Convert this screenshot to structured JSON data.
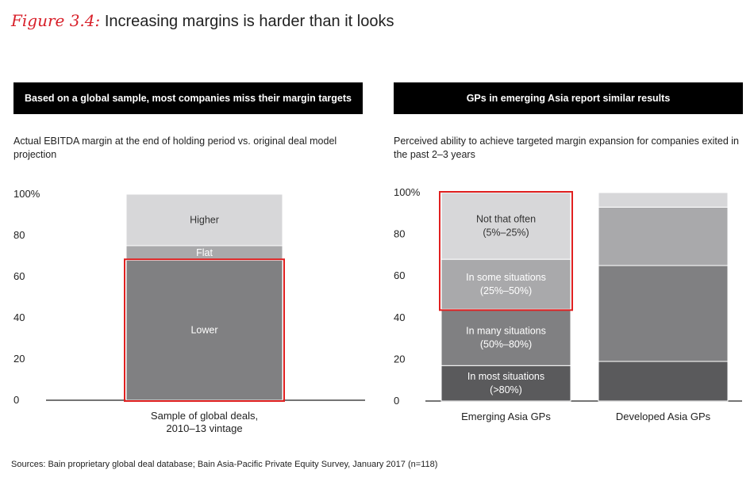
{
  "figure": {
    "label": "Figure 3.4:",
    "title": "Increasing margins is harder than it looks"
  },
  "left_panel": {
    "banner": "Based on a global sample, most companies miss their margin targets",
    "subtitle": "Actual EBITDA margin at the end of holding period vs. original deal model projection"
  },
  "right_panel": {
    "banner": "GPs in emerging Asia report similar results",
    "subtitle": "Perceived ability to achieve targeted margin expansion for companies exited in the past 2–3 years"
  },
  "source": "Sources: Bain proprietary global deal database; Bain Asia-Pacific Private Equity Survey, January 2017 (n=118)",
  "colors": {
    "highlight": "#e02020",
    "lightest": "#d7d7d9",
    "light": "#a9a9ab",
    "medium": "#808082",
    "dark": "#5a5a5c"
  },
  "chart_data": [
    {
      "type": "bar",
      "stacked": true,
      "yticks": [
        "100%",
        "80",
        "60",
        "40",
        "20",
        "0"
      ],
      "ylim": [
        0,
        100
      ],
      "categories": [
        [
          "Sample of global deals,",
          "2010–13 vintage"
        ]
      ],
      "series": [
        {
          "name": "Lower",
          "values": [
            68
          ],
          "color": "#808082",
          "label_lines": [
            "Lower"
          ]
        },
        {
          "name": "Flat",
          "values": [
            7
          ],
          "color": "#a9a9ab",
          "label_lines": [
            "Flat"
          ]
        },
        {
          "name": "Higher",
          "values": [
            25
          ],
          "color": "#d7d7d9",
          "label_lines": [
            "Higher"
          ]
        }
      ],
      "highlight": {
        "category_index": 0,
        "series": [
          "Lower"
        ]
      }
    },
    {
      "type": "bar",
      "stacked": true,
      "yticks": [
        "100%",
        "80",
        "60",
        "40",
        "20",
        "0"
      ],
      "ylim": [
        0,
        100
      ],
      "categories": [
        [
          "Emerging Asia GPs"
        ],
        [
          "Developed Asia GPs"
        ]
      ],
      "series": [
        {
          "name": "In most situations (>80%)",
          "values": [
            17,
            19
          ],
          "color": "#5a5a5c",
          "label_lines": [
            "In most situations",
            "(>80%)"
          ]
        },
        {
          "name": "In many situations (50%–80%)",
          "values": [
            27,
            46
          ],
          "color": "#808082",
          "label_lines": [
            "In many situations",
            "(50%–80%)"
          ]
        },
        {
          "name": "In some situations (25%–50%)",
          "values": [
            24,
            28
          ],
          "color": "#a9a9ab",
          "label_lines": [
            "In some situations",
            "(25%–50%)"
          ]
        },
        {
          "name": "Not that often (5%–25%)",
          "values": [
            32,
            7
          ],
          "color": "#d7d7d9",
          "label_lines": [
            "Not that often",
            "(5%–25%)"
          ]
        }
      ],
      "highlight": {
        "category_index": 0,
        "series": [
          "In some situations (25%–50%)",
          "Not that often (5%–25%)"
        ]
      }
    }
  ]
}
